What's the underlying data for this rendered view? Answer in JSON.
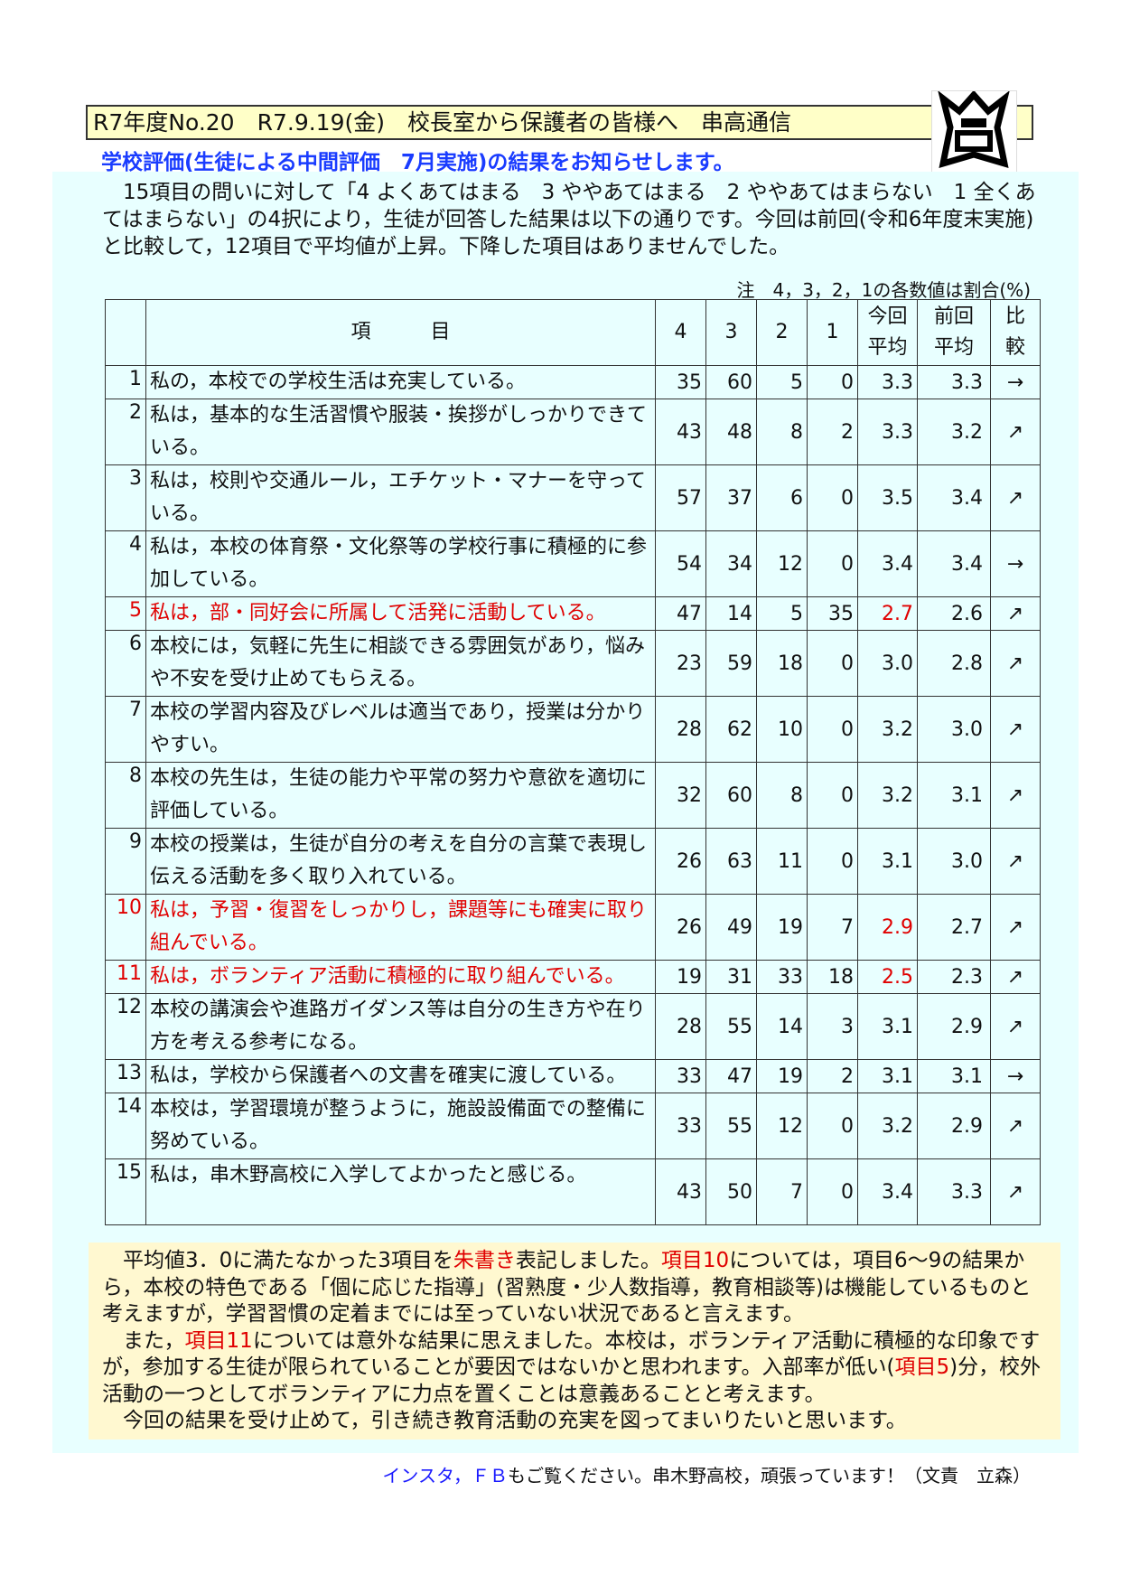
{
  "header": {
    "title": "R7年度No.20　R7.9.19(金)　校長室から保護者の皆様へ　串高通信",
    "logo_text": "串高"
  },
  "subtitle": "学校評価(生徒による中間評価　7月実施)の結果をお知らせします。",
  "intro": "　15項目の問いに対して「4 よくあてはまる　3 ややあてはまる　2 ややあてはまらない　1 全くあてはまらない」の4択により，生徒が回答した結果は以下の通りです。今回は前回(令和6年度末実施)と比較して，12項目で平均値が上昇。下降した項目はありませんでした。",
  "note": "注　4，3，2，1の各数値は割合(%)",
  "table": {
    "headers": {
      "item": "項　　　目",
      "c4": "4",
      "c3": "3",
      "c2": "2",
      "c1": "1",
      "current_a": "今回",
      "current_b": "平均",
      "prev_a": "前回",
      "prev_b": "平均",
      "cmp_a": "比",
      "cmp_b": "較"
    },
    "rows": [
      {
        "no": "1",
        "item": "私の，本校での学校生活は充実している。",
        "v4": "35",
        "v3": "60",
        "v2": "5",
        "v1": "0",
        "current": "3.3",
        "prev": "3.3",
        "cmp": "→",
        "red": false,
        "lines": 1
      },
      {
        "no": "2",
        "item": "私は，基本的な生活習慣や服装・挨拶がしっかりできている。",
        "v4": "43",
        "v3": "48",
        "v2": "8",
        "v1": "2",
        "current": "3.3",
        "prev": "3.2",
        "cmp": "↗",
        "red": false,
        "lines": 2
      },
      {
        "no": "3",
        "item": "私は，校則や交通ルール，エチケット・マナーを守っている。",
        "v4": "57",
        "v3": "37",
        "v2": "6",
        "v1": "0",
        "current": "3.5",
        "prev": "3.4",
        "cmp": "↗",
        "red": false,
        "lines": 2
      },
      {
        "no": "4",
        "item": "私は，本校の体育祭・文化祭等の学校行事に積極的に参加している。",
        "v4": "54",
        "v3": "34",
        "v2": "12",
        "v1": "0",
        "current": "3.4",
        "prev": "3.4",
        "cmp": "→",
        "red": false,
        "lines": 2
      },
      {
        "no": "5",
        "item": "私は，部・同好会に所属して活発に活動している。",
        "v4": "47",
        "v3": "14",
        "v2": "5",
        "v1": "35",
        "current": "2.7",
        "prev": "2.6",
        "cmp": "↗",
        "red": true,
        "lines": 1
      },
      {
        "no": "6",
        "item": "本校には，気軽に先生に相談できる雰囲気があり，悩みや不安を受け止めてもらえる。",
        "v4": "23",
        "v3": "59",
        "v2": "18",
        "v1": "0",
        "current": "3.0",
        "prev": "2.8",
        "cmp": "↗",
        "red": false,
        "lines": 2
      },
      {
        "no": "7",
        "item": "本校の学習内容及びレベルは適当であり，授業は分かりやすい。",
        "v4": "28",
        "v3": "62",
        "v2": "10",
        "v1": "0",
        "current": "3.2",
        "prev": "3.0",
        "cmp": "↗",
        "red": false,
        "lines": 2
      },
      {
        "no": "8",
        "item": "本校の先生は，生徒の能力や平常の努力や意欲を適切に評価している。",
        "v4": "32",
        "v3": "60",
        "v2": "8",
        "v1": "0",
        "current": "3.2",
        "prev": "3.1",
        "cmp": "↗",
        "red": false,
        "lines": 2
      },
      {
        "no": "9",
        "item": "本校の授業は，生徒が自分の考えを自分の言葉で表現し伝える活動を多く取り入れている。",
        "v4": "26",
        "v3": "63",
        "v2": "11",
        "v1": "0",
        "current": "3.1",
        "prev": "3.0",
        "cmp": "↗",
        "red": false,
        "lines": 2
      },
      {
        "no": "10",
        "item": "私は，予習・復習をしっかりし，課題等にも確実に取り組んでいる。",
        "v4": "26",
        "v3": "49",
        "v2": "19",
        "v1": "7",
        "current": "2.9",
        "prev": "2.7",
        "cmp": "↗",
        "red": true,
        "lines": 2
      },
      {
        "no": "11",
        "item": "私は，ボランティア活動に積極的に取り組んでいる。",
        "v4": "19",
        "v3": "31",
        "v2": "33",
        "v1": "18",
        "current": "2.5",
        "prev": "2.3",
        "cmp": "↗",
        "red": true,
        "lines": 1
      },
      {
        "no": "12",
        "item": "本校の講演会や進路ガイダンス等は自分の生き方や在り方を考える参考になる。",
        "v4": "28",
        "v3": "55",
        "v2": "14",
        "v1": "3",
        "current": "3.1",
        "prev": "2.9",
        "cmp": "↗",
        "red": false,
        "lines": 2
      },
      {
        "no": "13",
        "item": "私は，学校から保護者への文書を確実に渡している。",
        "v4": "33",
        "v3": "47",
        "v2": "19",
        "v1": "2",
        "current": "3.1",
        "prev": "3.1",
        "cmp": "→",
        "red": false,
        "lines": 1
      },
      {
        "no": "14",
        "item": "本校は，学習環境が整うように，施設設備面での整備に努めている。",
        "v4": "33",
        "v3": "55",
        "v2": "12",
        "v1": "0",
        "current": "3.2",
        "prev": "2.9",
        "cmp": "↗",
        "red": false,
        "lines": 2
      },
      {
        "no": "15",
        "item": "私は，串木野高校に入学してよかったと感じる。",
        "v4": "43",
        "v3": "50",
        "v2": "7",
        "v1": "0",
        "current": "3.4",
        "prev": "3.3",
        "cmp": "↗",
        "red": false,
        "lines": 2
      }
    ]
  },
  "summary": {
    "p1_a": "　平均値3．0に満たなかった3項目を",
    "p1_red1": "朱書き",
    "p1_b": "表記しました。",
    "p1_red2": "項目10",
    "p1_c": "については，項目6～9の結果から，本校の特色である「個に応じた指導」(習熟度・少人数指導，教育相談等)は機能しているものと考えますが，学習習慣の定着までには至っていない状況であると言えます。",
    "p2_a": "　また，",
    "p2_red1": "項目11",
    "p2_b": "については意外な結果に思えました。本校は，ボランティア活動に積極的な印象ですが，参加する生徒が限られていることが要因ではないかと思われます。入部率が低い(",
    "p2_red2": "項目5",
    "p2_c": ")分，校外活動の一つとしてボランティアに力点を置くことは意義あることと考えます。",
    "p3": "　今回の結果を受け止めて，引き続き教育活動の充実を図ってまいりたいと思います。"
  },
  "footer": {
    "links": "インスタ，ＦＢ",
    "text": "もご覧ください。串木野高校，頑張っています！（文責　立森）"
  },
  "colors": {
    "red": "#e00000",
    "blue": "#1a3cff",
    "cyan_bg": "#e8ffff",
    "yellow_bg": "#fff8d0",
    "title_bg": "#ffffc8"
  }
}
